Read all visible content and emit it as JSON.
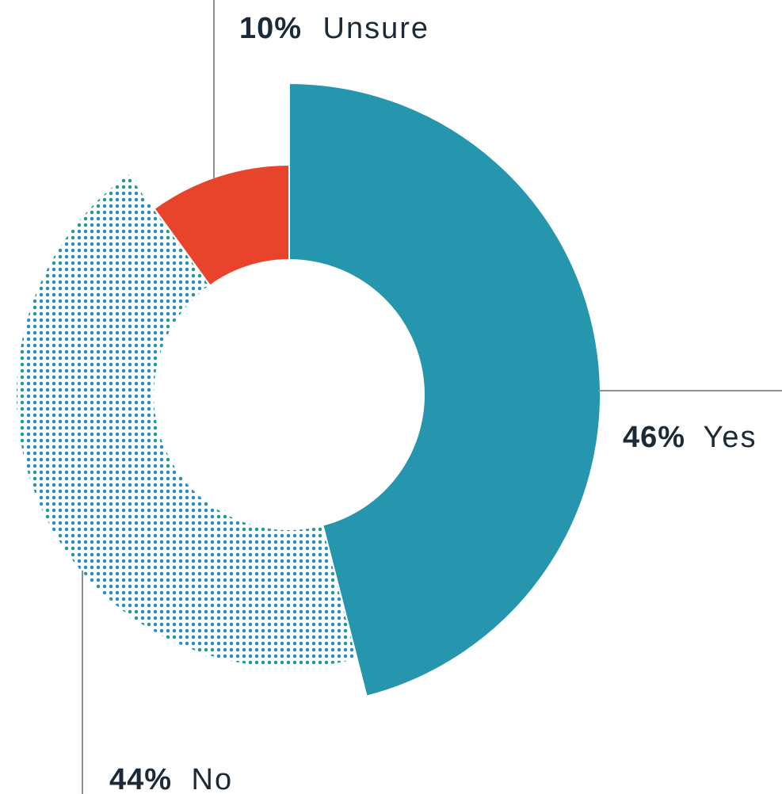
{
  "chart_data": {
    "type": "pie",
    "categories": [
      "Yes",
      "No",
      "Unsure"
    ],
    "values": [
      46,
      44,
      10
    ],
    "value_labels": [
      "46%",
      "44%",
      "10%"
    ],
    "colors": {
      "Yes": "#2596ad",
      "No": "#2596ad",
      "Unsure": "#e8442c"
    },
    "fill_styles": {
      "Yes": "solid",
      "No": "dotted",
      "Unsure": "solid"
    },
    "label_color": "#1b2a36",
    "leader_color": "#8a8f94",
    "title": "",
    "legend": "none"
  }
}
